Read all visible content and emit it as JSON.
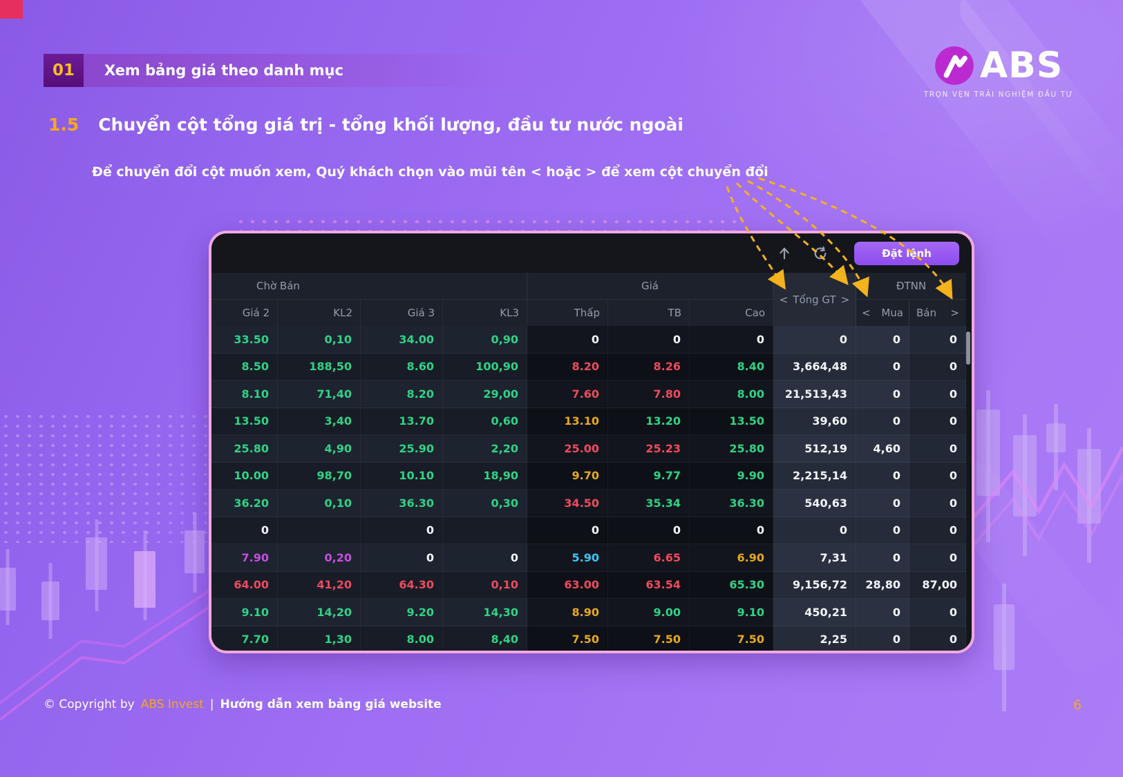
{
  "slide": {
    "section_number": "01",
    "section_title": "Xem bảng giá theo danh mục",
    "subsection_number": "1.5",
    "subsection_title": "Chuyển cột tổng giá trị - tổng khối lượng, đầu tư nước ngoài",
    "instruction": "Để chuyển đổi cột muốn xem, Quý khách chọn vào mũi tên < hoặc > để xem cột chuyển đổi",
    "page_number": "6"
  },
  "logo": {
    "text": "ABS",
    "tagline": "TRỌN VẸN TRẢI NGHIỆM ĐẦU TƯ"
  },
  "footer": {
    "copyright": "© Copyright by",
    "brand": "ABS Invest",
    "separator": "|",
    "doc_title": "Hướng dẫn xem bảng giá website"
  },
  "board": {
    "toolbar": {
      "order_button": "Đặt lệnh",
      "icons": [
        "arrow-up",
        "refresh"
      ]
    },
    "groups": {
      "cho_ban": "Chờ Bán",
      "gia": "Giá",
      "dtnn": "ĐTNN"
    },
    "tong_gt": {
      "left_arrow": "<",
      "label": "Tổng GT",
      "right_arrow": ">"
    },
    "columns": [
      "Giá 2",
      "KL2",
      "Giá 3",
      "KL3",
      "Thấp",
      "TB",
      "Cao"
    ],
    "column_keys": [
      "gia2",
      "kl2",
      "gia3",
      "kl3",
      "thap",
      "tb",
      "cao",
      "tong_gt",
      "mua",
      "ban"
    ],
    "dtnn_sub": {
      "left_arrow": "<",
      "mua": "Mua",
      "ban": "Bán",
      "right_arrow": ">"
    },
    "rows": [
      [
        [
          "33.50",
          "up"
        ],
        [
          "0,10",
          "up"
        ],
        [
          "34.00",
          "up"
        ],
        [
          "0,90",
          "up"
        ],
        [
          "0",
          "wh"
        ],
        [
          "0",
          "wh"
        ],
        [
          "0",
          "wh"
        ],
        [
          "0",
          "wh"
        ],
        [
          "0",
          "wh"
        ],
        [
          "0",
          "wh"
        ]
      ],
      [
        [
          "8.50",
          "up"
        ],
        [
          "188,50",
          "up"
        ],
        [
          "8.60",
          "up"
        ],
        [
          "100,90",
          "up"
        ],
        [
          "8.20",
          "dn"
        ],
        [
          "8.26",
          "dn"
        ],
        [
          "8.40",
          "up"
        ],
        [
          "3,664,48",
          "wh"
        ],
        [
          "0",
          "wh"
        ],
        [
          "0",
          "wh"
        ]
      ],
      [
        [
          "8.10",
          "up"
        ],
        [
          "71,40",
          "up"
        ],
        [
          "8.20",
          "up"
        ],
        [
          "29,00",
          "up"
        ],
        [
          "7.60",
          "dn"
        ],
        [
          "7.80",
          "dn"
        ],
        [
          "8.00",
          "up"
        ],
        [
          "21,513,43",
          "wh"
        ],
        [
          "0",
          "wh"
        ],
        [
          "0",
          "wh"
        ]
      ],
      [
        [
          "13.50",
          "up"
        ],
        [
          "3,40",
          "up"
        ],
        [
          "13.70",
          "up"
        ],
        [
          "0,60",
          "up"
        ],
        [
          "13.10",
          "yl"
        ],
        [
          "13.20",
          "up"
        ],
        [
          "13.50",
          "up"
        ],
        [
          "39,60",
          "wh"
        ],
        [
          "0",
          "wh"
        ],
        [
          "0",
          "wh"
        ]
      ],
      [
        [
          "25.80",
          "up"
        ],
        [
          "4,90",
          "up"
        ],
        [
          "25.90",
          "up"
        ],
        [
          "2,20",
          "up"
        ],
        [
          "25.00",
          "dn"
        ],
        [
          "25.23",
          "dn"
        ],
        [
          "25.80",
          "up"
        ],
        [
          "512,19",
          "wh"
        ],
        [
          "4,60",
          "wh"
        ],
        [
          "0",
          "wh"
        ]
      ],
      [
        [
          "10.00",
          "up"
        ],
        [
          "98,70",
          "up"
        ],
        [
          "10.10",
          "up"
        ],
        [
          "18,90",
          "up"
        ],
        [
          "9.70",
          "yl"
        ],
        [
          "9.77",
          "up"
        ],
        [
          "9.90",
          "up"
        ],
        [
          "2,215,14",
          "wh"
        ],
        [
          "0",
          "wh"
        ],
        [
          "0",
          "wh"
        ]
      ],
      [
        [
          "36.20",
          "up"
        ],
        [
          "0,10",
          "up"
        ],
        [
          "36.30",
          "up"
        ],
        [
          "0,30",
          "up"
        ],
        [
          "34.50",
          "dn"
        ],
        [
          "35.34",
          "up"
        ],
        [
          "36.30",
          "up"
        ],
        [
          "540,63",
          "wh"
        ],
        [
          "0",
          "wh"
        ],
        [
          "0",
          "wh"
        ]
      ],
      [
        [
          "0",
          "wh"
        ],
        [
          "",
          ""
        ],
        [
          "0",
          "wh"
        ],
        [
          "",
          ""
        ],
        [
          "0",
          "wh"
        ],
        [
          "0",
          "wh"
        ],
        [
          "0",
          "wh"
        ],
        [
          "0",
          "wh"
        ],
        [
          "0",
          "wh"
        ],
        [
          "0",
          "wh"
        ]
      ],
      [
        [
          "7.90",
          "pu"
        ],
        [
          "0,20",
          "pu"
        ],
        [
          "0",
          "wh"
        ],
        [
          "0",
          "wh"
        ],
        [
          "5.90",
          "cy"
        ],
        [
          "6.65",
          "dn"
        ],
        [
          "6.90",
          "yl"
        ],
        [
          "7,31",
          "wh"
        ],
        [
          "0",
          "wh"
        ],
        [
          "0",
          "wh"
        ]
      ],
      [
        [
          "64.00",
          "dn"
        ],
        [
          "41,20",
          "dn"
        ],
        [
          "64.30",
          "dn"
        ],
        [
          "0,10",
          "dn"
        ],
        [
          "63.00",
          "dn"
        ],
        [
          "63.54",
          "dn"
        ],
        [
          "65.30",
          "up"
        ],
        [
          "9,156,72",
          "wh"
        ],
        [
          "28,80",
          "wh"
        ],
        [
          "87,00",
          "wh"
        ]
      ],
      [
        [
          "9.10",
          "up"
        ],
        [
          "14,20",
          "up"
        ],
        [
          "9.20",
          "up"
        ],
        [
          "14,30",
          "up"
        ],
        [
          "8.90",
          "yl"
        ],
        [
          "9.00",
          "up"
        ],
        [
          "9.10",
          "up"
        ],
        [
          "450,21",
          "wh"
        ],
        [
          "0",
          "wh"
        ],
        [
          "0",
          "wh"
        ]
      ],
      [
        [
          "7.70",
          "up"
        ],
        [
          "1,30",
          "up"
        ],
        [
          "8.00",
          "up"
        ],
        [
          "8,40",
          "up"
        ],
        [
          "7.50",
          "yl"
        ],
        [
          "7.50",
          "yl"
        ],
        [
          "7.50",
          "yl"
        ],
        [
          "2,25",
          "wh"
        ],
        [
          "0",
          "wh"
        ],
        [
          "0",
          "wh"
        ]
      ]
    ]
  },
  "colors": {
    "price_up": "#2fd385",
    "price_down": "#ee4b5e",
    "price_ref": "#e7a91d",
    "price_ceiling": "#c44fe2",
    "price_floor": "#38c8f5",
    "arrow_annotation": "#f4b31c",
    "order_button": "#8d4cf0",
    "board_border": "#f0a9de",
    "logo_circle": "#bb2ad0"
  }
}
